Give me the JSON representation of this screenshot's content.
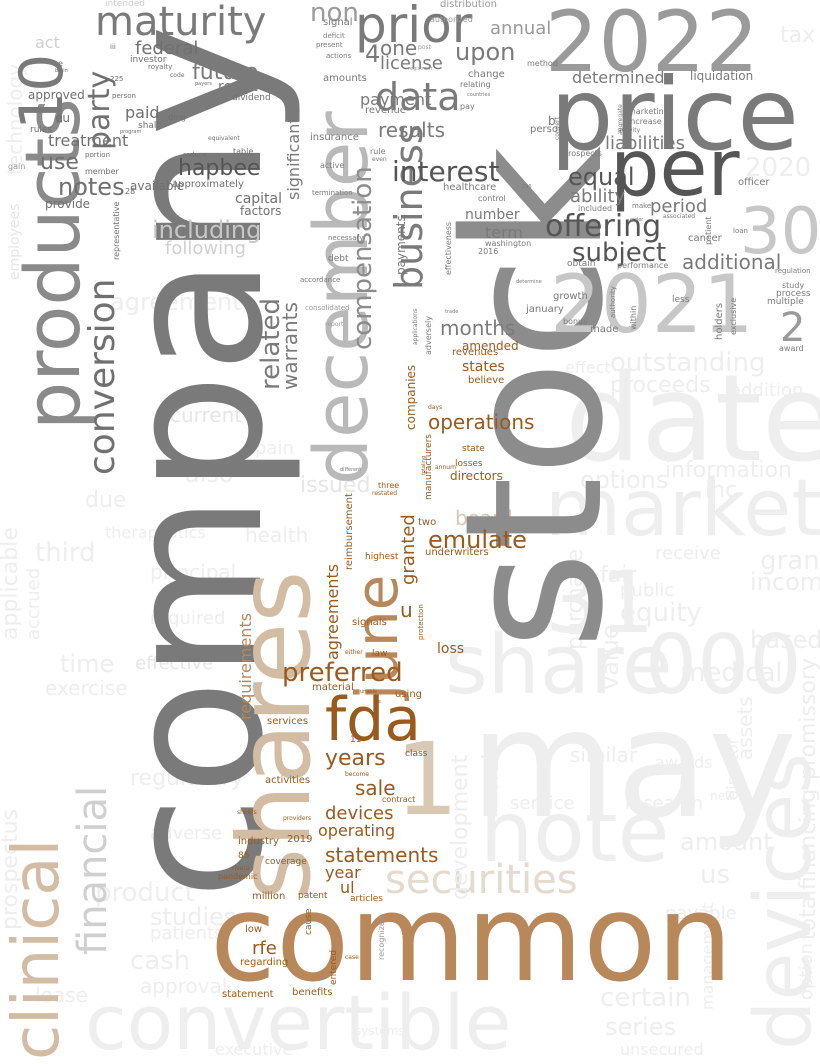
{
  "palette": {
    "gray_dark": "#6e6e6e",
    "gray_mid": "#8c8c8c",
    "gray_light": "#b4b4b4",
    "faint": "#eeeeee",
    "brown": "#9a5a1e",
    "tan": "#c4956a",
    "beige": "#d9c8b4"
  },
  "words": {
    "company": "company",
    "stock": "stock",
    "common": "common",
    "may": "may",
    "price": "price",
    "shares": "shares",
    "y2022": "2022",
    "y2021": "2021",
    "date": "date",
    "per": "per",
    "december": "december",
    "products": "products",
    "market": "market",
    "share": "share",
    "n000": "000",
    "n31": "31",
    "note": "note",
    "devices_big": "devices",
    "convertible": "convertible",
    "clinical": "clinical",
    "fda": "fda",
    "june": "june",
    "n1": "1",
    "n30": "30",
    "maturity": "maturity",
    "prior": "prior",
    "data": "data",
    "business": "business",
    "conversion": "conversion",
    "securities": "securities",
    "financial": "financial",
    "n10": "10",
    "preferred": "preferred",
    "offering": "offering",
    "interest": "interest",
    "subject": "subject",
    "emulate": "emulate",
    "statements": "statements",
    "hapbee": "hapbee",
    "notes": "notes",
    "years": "years",
    "sale": "sale",
    "devices_small": "devices",
    "operating": "operating",
    "operations": "operations",
    "months": "months",
    "compensation": "compensation",
    "agreements": "agreements",
    "outstanding": "outstanding",
    "use": "use",
    "future": "future",
    "federal": "federal",
    "party": "party",
    "including": "including",
    "related": "related",
    "warrants": "warrants",
    "results": "results",
    "payment": "payment",
    "upon": "upon",
    "license": "license",
    "one": "one",
    "non": "non",
    "equal": "equal",
    "ability": "ability",
    "period": "period",
    "additional": "additional",
    "term": "term",
    "number": "number",
    "liabilities": "liabilities",
    "determined": "determined",
    "annual": "annual",
    "treatment": "treatment",
    "paid": "paid",
    "approved": "approved",
    "capital": "capital",
    "factors": "factors",
    "available": "available",
    "granted": "granted",
    "loss": "loss",
    "year": "year",
    "ul": "ul",
    "rfe": "rfe",
    "n2": "2",
    "n4": "4",
    "significant": "significant",
    "payments": "payments",
    "amended": "amended",
    "states": "states",
    "board": "board",
    "directors": "directors",
    "requirements": "requirements",
    "u": "u",
    "agreement": "agreement",
    "current": "current",
    "issued": "issued",
    "time": "time",
    "cash": "cash",
    "product": "product",
    "studies": "studies",
    "patients": "patients",
    "series": "series",
    "certain": "certain",
    "amount": "amount",
    "us": "us",
    "information": "information",
    "medical": "medical",
    "equity": "equity",
    "value": "value",
    "options": "options",
    "proceeds": "proceeds",
    "health": "health",
    "third": "third",
    "also": "also",
    "regulatory": "regulatory",
    "approval": "approval",
    "net": "net",
    "research": "research",
    "income": "income",
    "based": "based",
    "grant": "grant",
    "addition": "addition",
    "total": "total",
    "financing": "financing",
    "promissory": "promissory",
    "purchase": "purchase",
    "inc": "inc",
    "n2020": "2020",
    "tax": "tax",
    "technology": "technology",
    "employees": "employees",
    "applicable": "applicable",
    "accrued": "accrued",
    "prospectus": "prospectus",
    "exercise": "exercise",
    "effective": "effective",
    "therapeutics": "therapeutics",
    "principal": "principal",
    "development": "development",
    "act": "act",
    "provide": "provide",
    "result": "result",
    "healthcare": "healthcare",
    "washington": "washington",
    "cancer": "cancer",
    "marketing": "marketing",
    "increase": "increase",
    "growth": "growth",
    "january": "january",
    "bonus": "bonus",
    "made": "made",
    "holders": "holders",
    "exclusive": "exclusive",
    "award": "award",
    "study": "study",
    "process": "process",
    "multiple": "multiple",
    "regulation": "regulation",
    "officer": "officer",
    "liquidation": "liquidation",
    "included": "included",
    "obtain": "obtain",
    "performance": "performance",
    "revenues": "revenues",
    "believe": "believe",
    "companies": "companies",
    "manufacturers": "manufacturers",
    "losses": "losses",
    "state": "state",
    "two": "two",
    "underwriters": "underwriters",
    "highest": "highest",
    "signals": "signals",
    "law": "law",
    "material": "material",
    "using": "using",
    "services": "services",
    "activities": "activities",
    "class": "class",
    "n11": "11",
    "contract": "contract",
    "industry": "industry",
    "n2019": "2019",
    "coverage": "coverage",
    "million": "million",
    "patent": "patent",
    "cause": "cause",
    "articles": "articles",
    "entered": "entered",
    "low": "low",
    "regarding": "regarding",
    "statement": "statement",
    "benefits": "benefits",
    "pandemic": "pandemic",
    "n85": "85",
    "dividend": "dividend",
    "investor": "investor",
    "royalty": "royalty",
    "eu": "eu",
    "rules": "rules",
    "member": "member",
    "shall": "shall",
    "dmg": "dmg",
    "n28": "28",
    "approximately": "approximately",
    "following": "following",
    "table": "table",
    "reduce": "reduce",
    "equivalent": "equivalent",
    "insurance": "insurance",
    "active": "active",
    "termination": "termination",
    "necessary": "necessary",
    "debt": "debt",
    "accordance": "accordance",
    "amounts": "amounts",
    "revenue": "revenue",
    "rule": "rule",
    "even": "even",
    "relating": "relating",
    "change": "change",
    "method": "method",
    "pay": "pay",
    "persons": "persons",
    "b": "b",
    "prospects": "prospects",
    "countries": "countries",
    "signal": "signal",
    "deficit": "deficit",
    "present": "present",
    "actions": "actions",
    "distribution": "distribution",
    "authorized": "authorized",
    "post": "post",
    "registrant": "registrant",
    "intended": "intended",
    "n225": "225",
    "person": "person",
    "program": "program",
    "code": "code",
    "payers": "payers",
    "iii": "iii",
    "portion": "portion",
    "gain": "gain",
    "n236": "236",
    "control": "control",
    "n2016": "2016",
    "effectiveness": "effectiveness",
    "adversely": "adversely",
    "applications": "applications",
    "trade": "trade",
    "determine": "determine",
    "within": "within",
    "authority": "authority",
    "less": "less",
    "associated": "associated",
    "patient": "patient",
    "loan": "loan",
    "new": "new",
    "receive": "receive",
    "fair": "fair",
    "public": "public",
    "effect": "effect",
    "similar": "similar",
    "awards": "awards",
    "service": "service",
    "due": "due",
    "pain": "pain",
    "adverse": "adverse",
    "lease": "lease",
    "executive": "executive",
    "systems": "systems",
    "unsecured": "unsecured",
    "payable": "payable",
    "management": "management",
    "director": "director",
    "option": "option",
    "assets": "assets",
    "reimbursement": "reimbursement",
    "unable": "unable",
    "either": "either",
    "protection": "protection",
    "days": "days",
    "three": "three",
    "restated": "restated",
    "different": "different",
    "sheets": "sheets",
    "providers": "providers",
    "rivera": "rivera",
    "become": "become",
    "case": "case",
    "recognized": "recognized",
    "representative": "representative",
    "consolidated": "consolidated",
    "report": "report",
    "brain": "brain",
    "e": "e",
    "order": "order",
    "make": "make",
    "activity": "activity",
    "aggregate": "aggregate",
    "convert": "convert",
    "ce": "ce",
    "annum": "annum",
    "totaling": "totaling",
    "unsolved": "unsolved",
    "restrictions": "restrictions",
    "claims": "claims",
    "employment": "employment",
    "provider": "provider",
    "therapeutic": "therapeutic",
    "indications": "indications",
    "include": "include",
    "inventory": "inventory",
    "required": "required",
    "stockholders": "stockholders",
    "require": "require",
    "reporting": "reporting",
    "facility": "facility",
    "investment": "investment"
  }
}
